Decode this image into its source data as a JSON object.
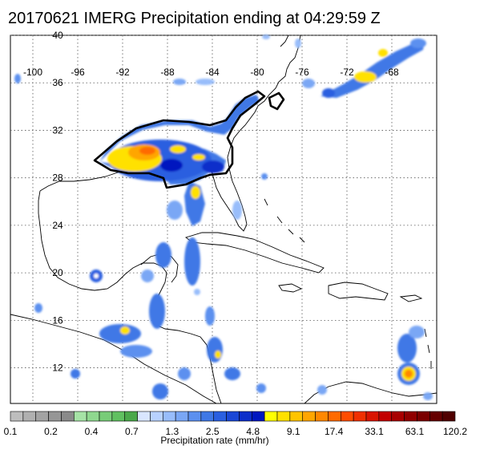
{
  "title": "20170621 IMERG Precipitation ending at 04:29:59 Z",
  "map": {
    "lon_range": [
      -102,
      -64
    ],
    "lat_range": [
      9,
      40
    ],
    "lon_ticks": [
      -100,
      -96,
      -92,
      -88,
      -84,
      -80,
      -76,
      -72,
      -68
    ],
    "lat_ticks": [
      40,
      36,
      32,
      28,
      24,
      20,
      16,
      12
    ],
    "grid": "dotted",
    "highlight_outline_color": "#000000"
  },
  "colorbar": {
    "label": "Precipitation rate (mm/hr)",
    "tick_labels": [
      "0.1",
      "0.2",
      "0.4",
      "0.7",
      "1.3",
      "2.5",
      "4.8",
      "9.1",
      "17.4",
      "33.1",
      "63.1",
      "120.2"
    ],
    "colors": [
      "#bdbdbd",
      "#b0b0b0",
      "#a3a3a3",
      "#969696",
      "#8a8a8a",
      "#a6e3a6",
      "#8fd88f",
      "#78cc78",
      "#60c060",
      "#4aa84a",
      "#d9e6ff",
      "#b8d2ff",
      "#98bdfb",
      "#7aa7f5",
      "#5c90ef",
      "#3f78e6",
      "#2a5fe0",
      "#1a47d6",
      "#0d2fca",
      "#0018bf",
      "#ffff00",
      "#ffe100",
      "#ffc400",
      "#ffa600",
      "#ff8800",
      "#ff6a00",
      "#ff4d00",
      "#f03000",
      "#d91400",
      "#c20000",
      "#a80000",
      "#900000",
      "#7a0000",
      "#650000",
      "#500000"
    ]
  }
}
